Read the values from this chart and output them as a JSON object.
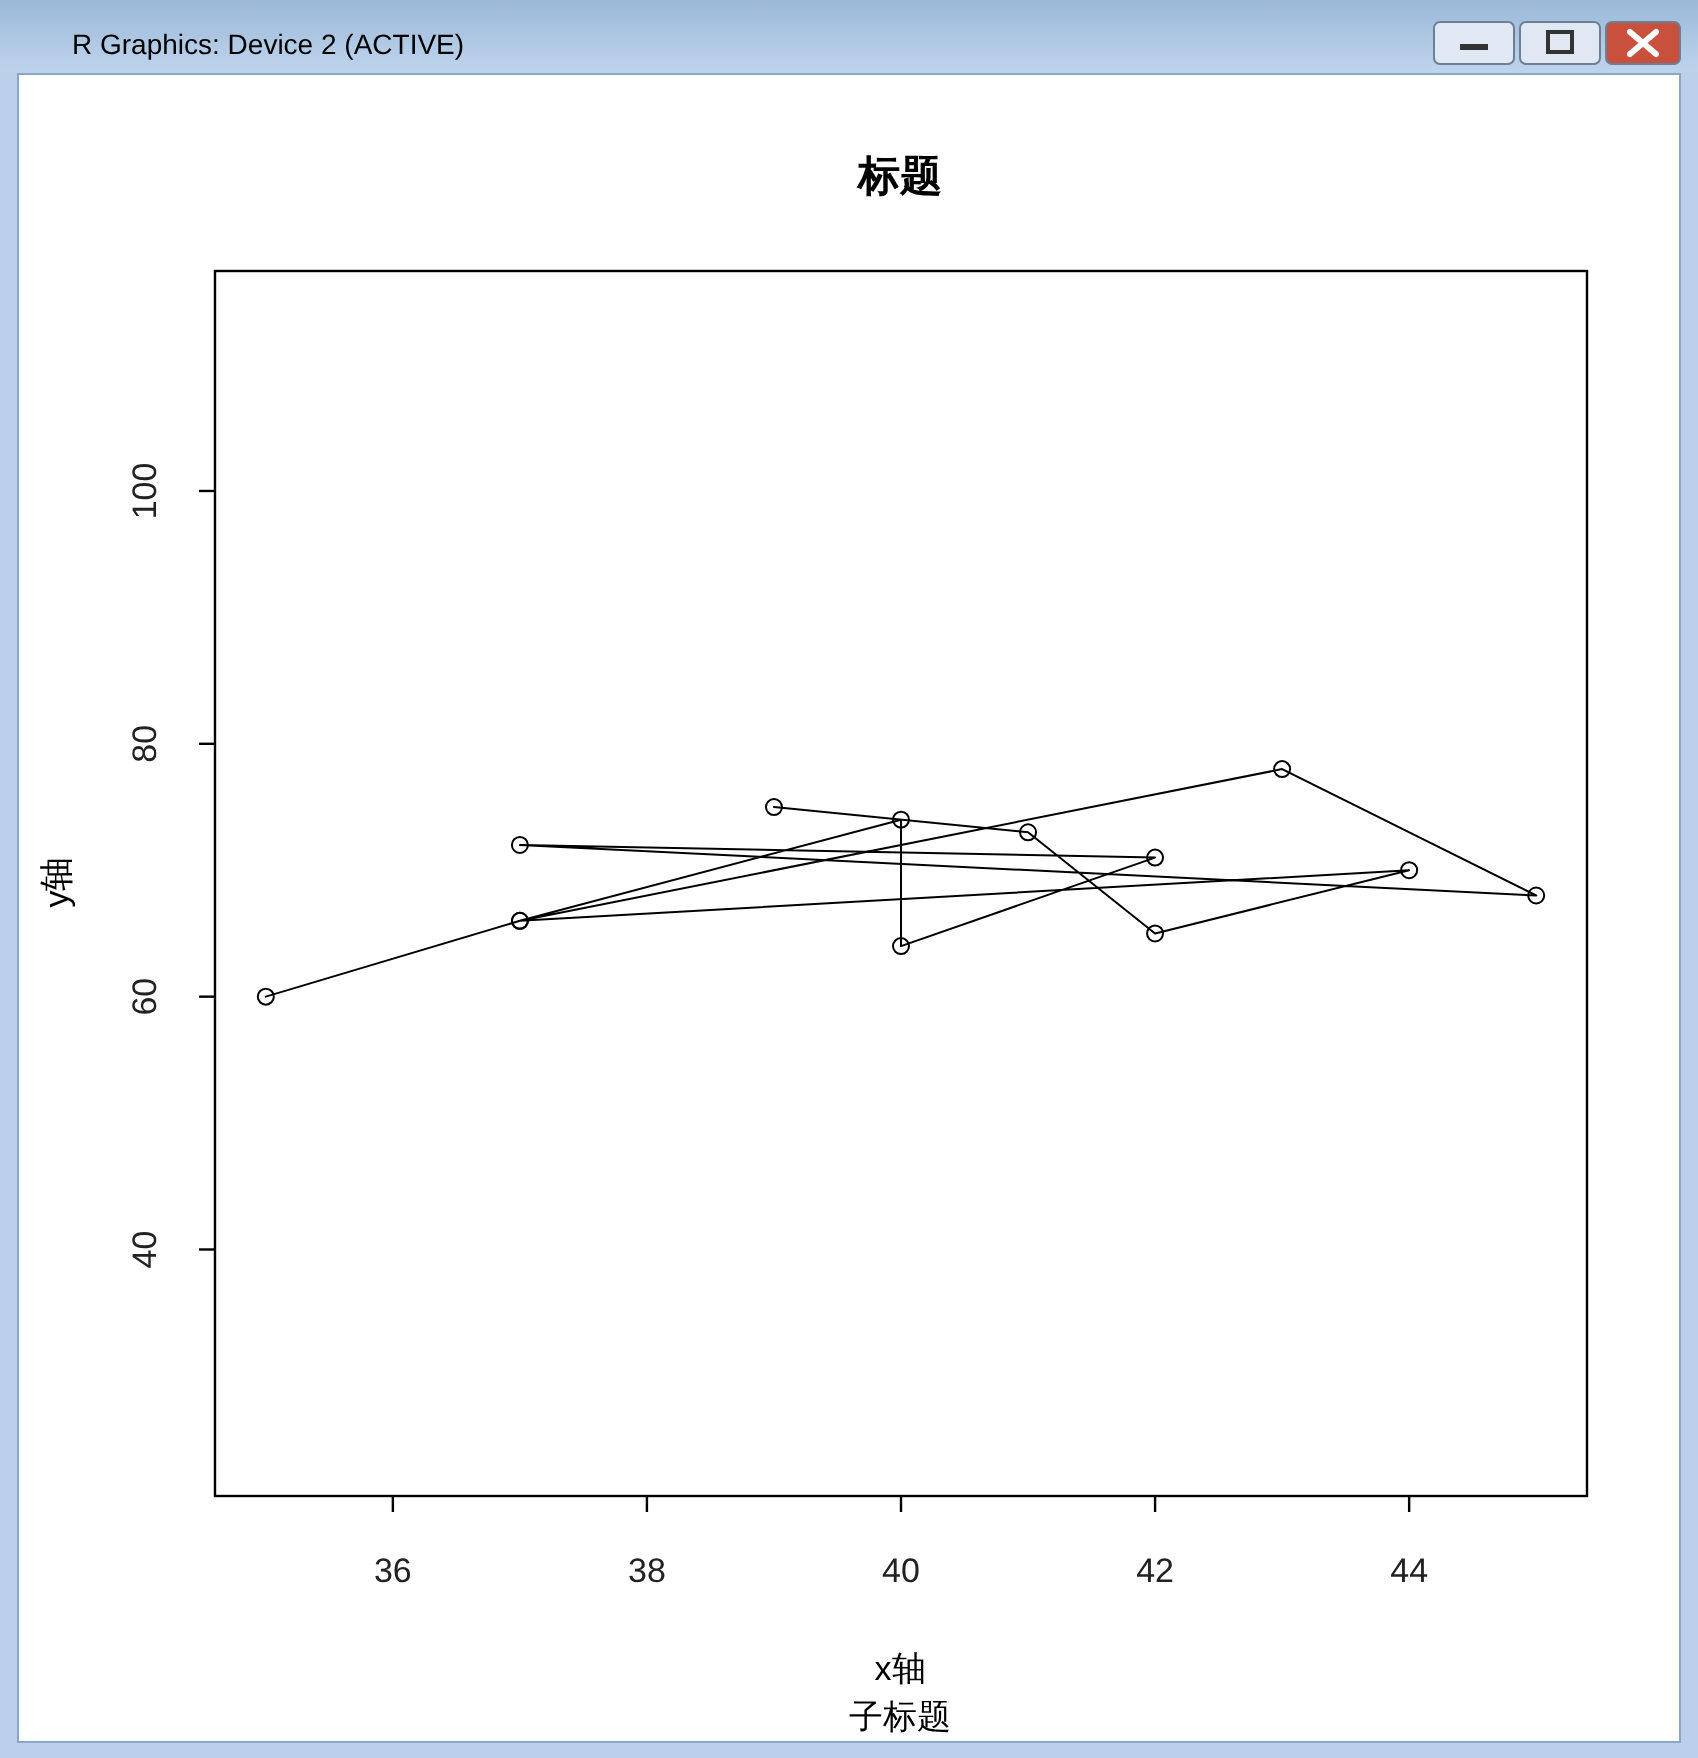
{
  "chart_data": {
    "type": "line",
    "title": "标题",
    "subtitle": "子标题",
    "xlabel": "x轴",
    "ylabel": "y轴",
    "annotations": [
      "R Graphics: Device 2 (ACTIVE)"
    ],
    "x": [
      35,
      37,
      43,
      45,
      37,
      42,
      40,
      40,
      37,
      44,
      42,
      41,
      39
    ],
    "series": [
      {
        "color": "#000000",
        "values": [
          60,
          66,
          78,
          68,
          72,
          71,
          64,
          74,
          66,
          70,
          65,
          73,
          75
        ]
      }
    ],
    "marker": "circle",
    "line_style": "solid",
    "xlim": [
      34.6,
      45.4
    ],
    "ylim": [
      20.5,
      117.4
    ],
    "xticks": [
      36,
      38,
      40,
      42,
      44
    ],
    "yticks": [
      40,
      60,
      80,
      100
    ]
  }
}
